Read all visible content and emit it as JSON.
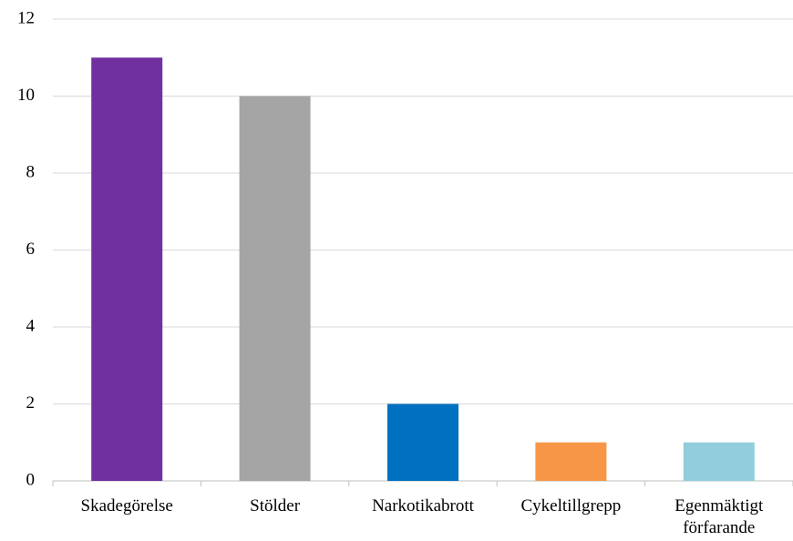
{
  "chart_data": {
    "type": "bar",
    "categories": [
      "Skadegörelse",
      "Stölder",
      "Narkotikabrott",
      "Cykeltillgrepp",
      "Egenmäktigt förfarande"
    ],
    "values": [
      11,
      10,
      2,
      1,
      1
    ],
    "colors": [
      "#7030a0",
      "#a5a5a5",
      "#0070c0",
      "#f79646",
      "#92cddc"
    ],
    "ylim": [
      0,
      12
    ],
    "yticks": [
      0,
      2,
      4,
      6,
      8,
      10,
      12
    ],
    "grid": true
  }
}
